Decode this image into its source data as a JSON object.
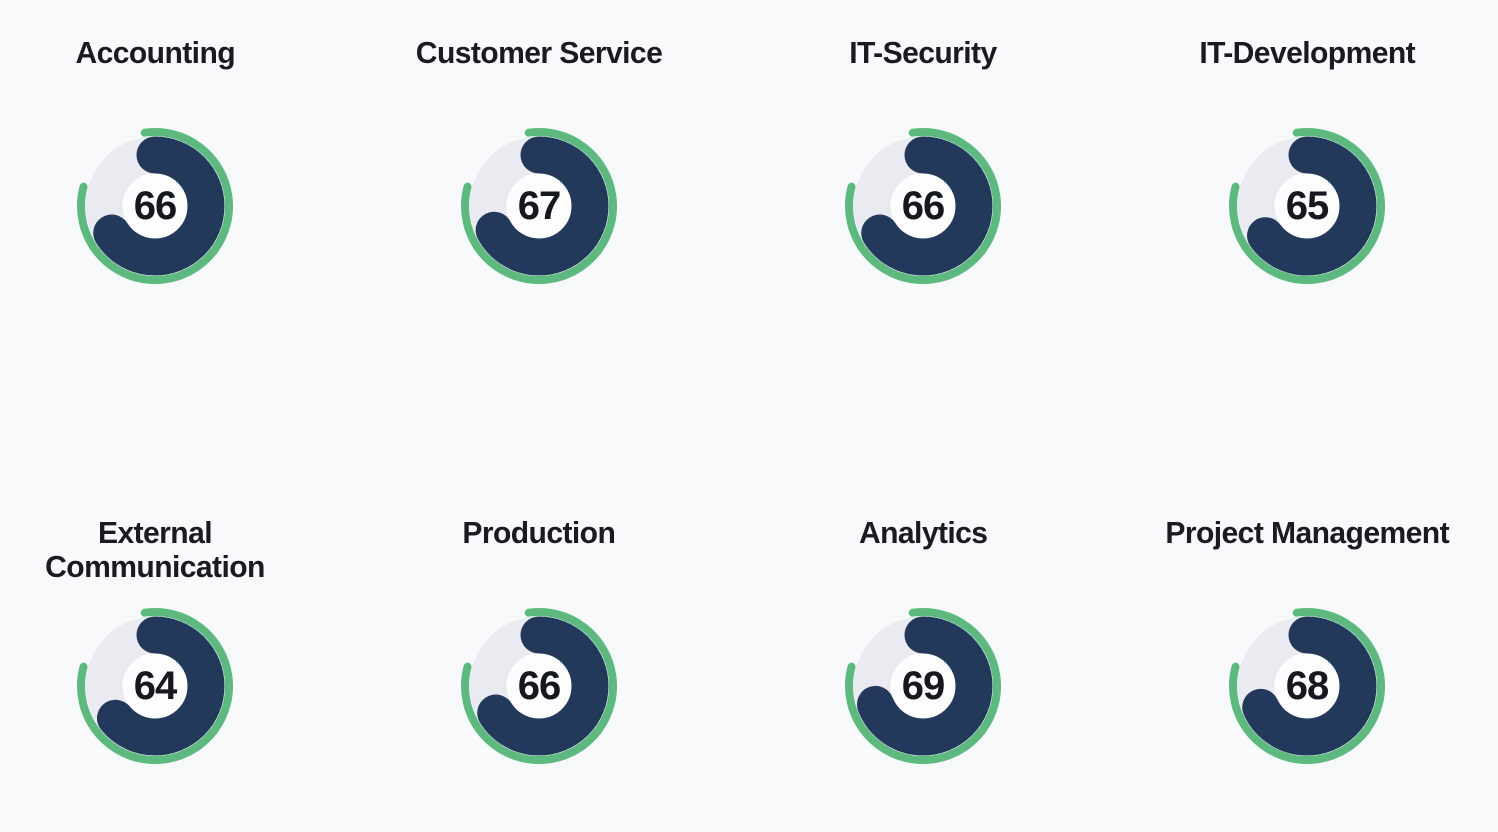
{
  "style": {
    "background": "#f8f9fb",
    "navy_arc_color": "#22395c",
    "green_arc_color": "#5cba7e",
    "track_color": "#e9ebf0",
    "hole_color": "#fdfdfe",
    "title_color": "#1a1b20",
    "value_color": "#15181f"
  },
  "chart_data": {
    "type": "donut",
    "subtype": "radial-gauge-grid",
    "layout": {
      "rows": 2,
      "columns": 4,
      "legend": false,
      "axes": false
    },
    "value_range": [
      0,
      100
    ],
    "value_arc_start_deg": 0,
    "outer_ring": {
      "start_deg": -8,
      "sweep_deg": 293
    },
    "gauges": [
      {
        "label": "Accounting",
        "value": 66
      },
      {
        "label": "Customer Service",
        "value": 67
      },
      {
        "label": "IT-Security",
        "value": 66
      },
      {
        "label": "IT-Development",
        "value": 65
      },
      {
        "label": "External Communication",
        "value": 64
      },
      {
        "label": "Production",
        "value": 66
      },
      {
        "label": "Analytics",
        "value": 69
      },
      {
        "label": "Project Management",
        "value": 68
      }
    ]
  }
}
